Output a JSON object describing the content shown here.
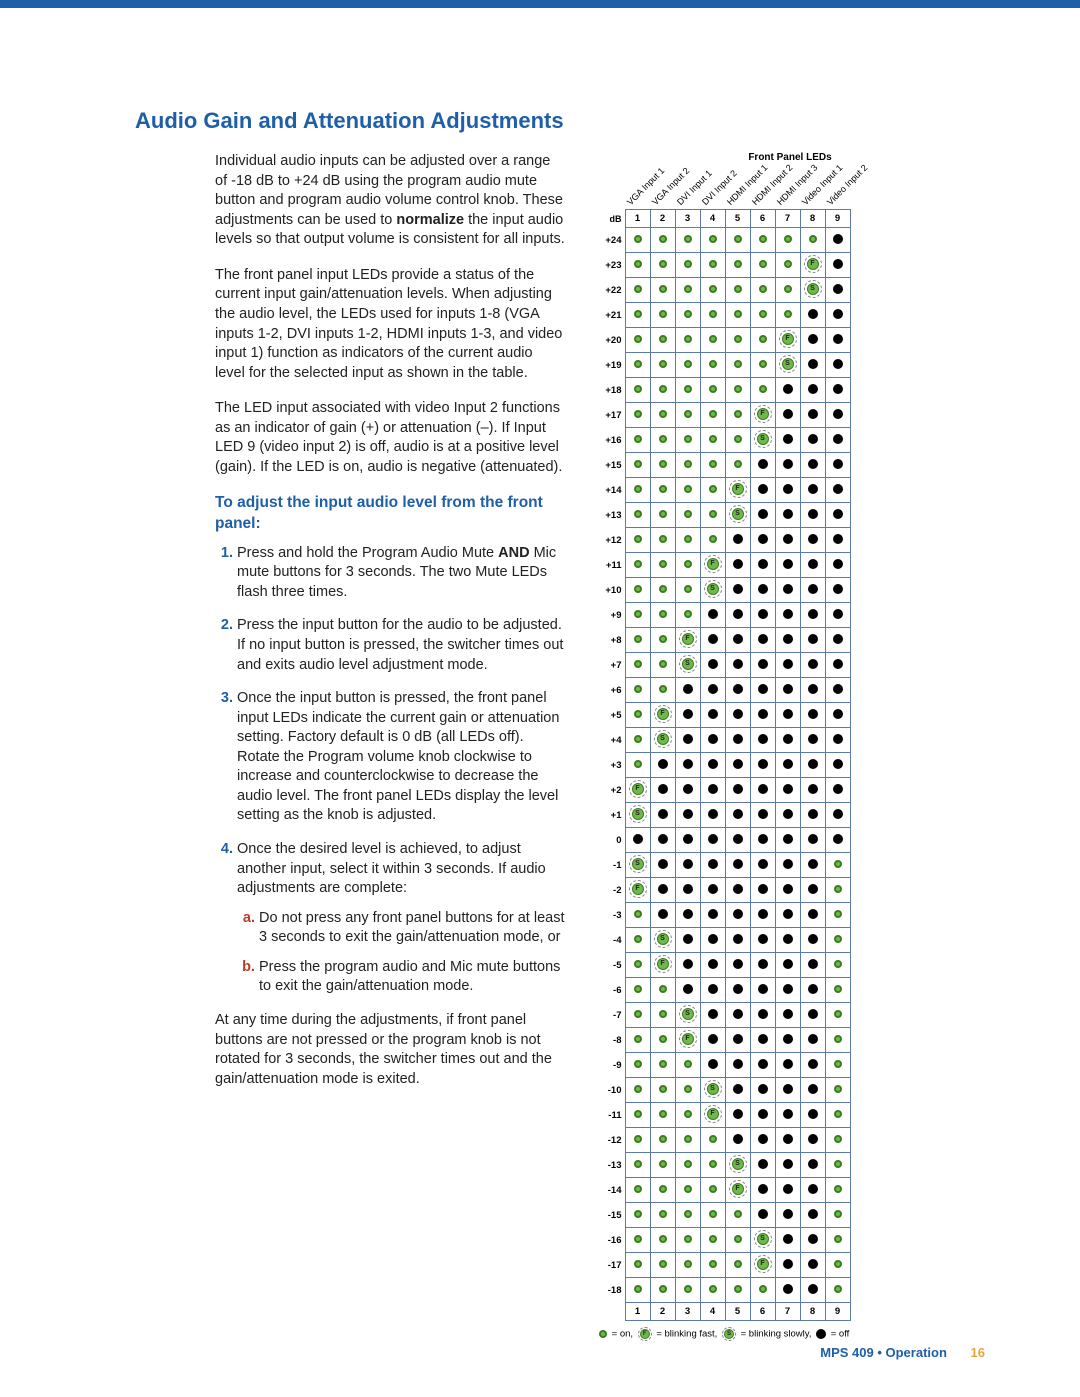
{
  "colors": {
    "accent_blue": "#1e5fa8",
    "accent_red": "#c0392b",
    "led_on_fill": "#6fb94a",
    "led_on_border": "#3c7d1f",
    "led_off": "#000000",
    "table_border": "#5b7aa8",
    "page_num": "#e8a33d"
  },
  "title": "Audio Gain and Attenuation Adjustments",
  "para1": "Individual audio inputs can be adjusted over a range of -18 dB to +24 dB using the program audio mute button and program audio volume control knob. These adjustments can be used to ",
  "para1_bold": "normalize",
  "para1_tail": " the input audio levels so that output volume is consistent for all inputs.",
  "para2": "The front panel input LEDs provide a status of the current input gain/attenuation levels. When adjusting the audio level, the LEDs used for inputs 1-8 (VGA inputs 1-2, DVI inputs 1-2, HDMI inputs 1-3, and video input 1) function as indicators of the current audio level for the selected input as shown in the table.",
  "para3": "The LED input associated with video Input 2 functions as an indicator of gain (+) or attenuation (–). If Input LED 9 (video input 2) is off, audio is at a positive level (gain). If the LED is on, audio is negative (attenuated).",
  "subhead": "To adjust the input audio level from the front panel:",
  "steps": [
    "Press and hold the Program Audio Mute <b>AND</b> Mic mute buttons for 3 seconds. The two Mute LEDs flash three times.",
    "Press the input button for the audio to be adjusted. If no input button is pressed, the switcher times out and exits audio level adjustment mode.",
    "Once the input button is pressed, the front panel input LEDs indicate the current gain or attenuation setting. Factory default is 0 dB (all LEDs off). Rotate the Program volume knob clockwise to increase and counterclockwise to decrease the audio level. The front panel LEDs display the level setting as the knob is adjusted.",
    "Once the desired level is achieved, to adjust another input, select it within 3 seconds. If audio adjustments are complete:"
  ],
  "substeps": [
    "Do not press any front panel buttons for at least 3 seconds to exit the gain/attenuation mode, or",
    "Press the program audio and Mic mute buttons to exit the gain/attenuation mode."
  ],
  "para_end": "At any time during the adjustments, if front panel buttons are not pressed or the program knob is not rotated for 3 seconds, the switcher times out and the gain/attenuation mode is exited.",
  "table": {
    "caption": "Front Panel LEDs",
    "columns": [
      "1",
      "2",
      "3",
      "4",
      "5",
      "6",
      "7",
      "8",
      "9"
    ],
    "column_labels": [
      "VGA Input 1",
      "VGA Input 2",
      "DVI Input 1",
      "DVI Input 2",
      "HDMI Input 1",
      "HDMI Input 2",
      "HDMI Input 3",
      "Video Input 1",
      "Video Input 2"
    ],
    "db_header": "dB",
    "rows": [
      {
        "db": "+24",
        "c": [
          "on",
          "on",
          "on",
          "on",
          "on",
          "on",
          "on",
          "on",
          "off"
        ]
      },
      {
        "db": "+23",
        "c": [
          "on",
          "on",
          "on",
          "on",
          "on",
          "on",
          "on",
          "bf",
          "off"
        ]
      },
      {
        "db": "+22",
        "c": [
          "on",
          "on",
          "on",
          "on",
          "on",
          "on",
          "on",
          "bs",
          "off"
        ]
      },
      {
        "db": "+21",
        "c": [
          "on",
          "on",
          "on",
          "on",
          "on",
          "on",
          "on",
          "off",
          "off"
        ]
      },
      {
        "db": "+20",
        "c": [
          "on",
          "on",
          "on",
          "on",
          "on",
          "on",
          "bf",
          "off",
          "off"
        ]
      },
      {
        "db": "+19",
        "c": [
          "on",
          "on",
          "on",
          "on",
          "on",
          "on",
          "bs",
          "off",
          "off"
        ]
      },
      {
        "db": "+18",
        "c": [
          "on",
          "on",
          "on",
          "on",
          "on",
          "on",
          "off",
          "off",
          "off"
        ]
      },
      {
        "db": "+17",
        "c": [
          "on",
          "on",
          "on",
          "on",
          "on",
          "bf",
          "off",
          "off",
          "off"
        ]
      },
      {
        "db": "+16",
        "c": [
          "on",
          "on",
          "on",
          "on",
          "on",
          "bs",
          "off",
          "off",
          "off"
        ]
      },
      {
        "db": "+15",
        "c": [
          "on",
          "on",
          "on",
          "on",
          "on",
          "off",
          "off",
          "off",
          "off"
        ]
      },
      {
        "db": "+14",
        "c": [
          "on",
          "on",
          "on",
          "on",
          "bf",
          "off",
          "off",
          "off",
          "off"
        ]
      },
      {
        "db": "+13",
        "c": [
          "on",
          "on",
          "on",
          "on",
          "bs",
          "off",
          "off",
          "off",
          "off"
        ]
      },
      {
        "db": "+12",
        "c": [
          "on",
          "on",
          "on",
          "on",
          "off",
          "off",
          "off",
          "off",
          "off"
        ]
      },
      {
        "db": "+11",
        "c": [
          "on",
          "on",
          "on",
          "bf",
          "off",
          "off",
          "off",
          "off",
          "off"
        ]
      },
      {
        "db": "+10",
        "c": [
          "on",
          "on",
          "on",
          "bs",
          "off",
          "off",
          "off",
          "off",
          "off"
        ]
      },
      {
        "db": "+9",
        "c": [
          "on",
          "on",
          "on",
          "off",
          "off",
          "off",
          "off",
          "off",
          "off"
        ]
      },
      {
        "db": "+8",
        "c": [
          "on",
          "on",
          "bf",
          "off",
          "off",
          "off",
          "off",
          "off",
          "off"
        ]
      },
      {
        "db": "+7",
        "c": [
          "on",
          "on",
          "bs",
          "off",
          "off",
          "off",
          "off",
          "off",
          "off"
        ]
      },
      {
        "db": "+6",
        "c": [
          "on",
          "on",
          "off",
          "off",
          "off",
          "off",
          "off",
          "off",
          "off"
        ]
      },
      {
        "db": "+5",
        "c": [
          "on",
          "bf",
          "off",
          "off",
          "off",
          "off",
          "off",
          "off",
          "off"
        ]
      },
      {
        "db": "+4",
        "c": [
          "on",
          "bs",
          "off",
          "off",
          "off",
          "off",
          "off",
          "off",
          "off"
        ]
      },
      {
        "db": "+3",
        "c": [
          "on",
          "off",
          "off",
          "off",
          "off",
          "off",
          "off",
          "off",
          "off"
        ]
      },
      {
        "db": "+2",
        "c": [
          "bf",
          "off",
          "off",
          "off",
          "off",
          "off",
          "off",
          "off",
          "off"
        ]
      },
      {
        "db": "+1",
        "c": [
          "bs",
          "off",
          "off",
          "off",
          "off",
          "off",
          "off",
          "off",
          "off"
        ]
      },
      {
        "db": "0",
        "c": [
          "off",
          "off",
          "off",
          "off",
          "off",
          "off",
          "off",
          "off",
          "off"
        ]
      },
      {
        "db": "-1",
        "c": [
          "bs",
          "off",
          "off",
          "off",
          "off",
          "off",
          "off",
          "off",
          "on"
        ]
      },
      {
        "db": "-2",
        "c": [
          "bf",
          "off",
          "off",
          "off",
          "off",
          "off",
          "off",
          "off",
          "on"
        ]
      },
      {
        "db": "-3",
        "c": [
          "on",
          "off",
          "off",
          "off",
          "off",
          "off",
          "off",
          "off",
          "on"
        ]
      },
      {
        "db": "-4",
        "c": [
          "on",
          "bs",
          "off",
          "off",
          "off",
          "off",
          "off",
          "off",
          "on"
        ]
      },
      {
        "db": "-5",
        "c": [
          "on",
          "bf",
          "off",
          "off",
          "off",
          "off",
          "off",
          "off",
          "on"
        ]
      },
      {
        "db": "-6",
        "c": [
          "on",
          "on",
          "off",
          "off",
          "off",
          "off",
          "off",
          "off",
          "on"
        ]
      },
      {
        "db": "-7",
        "c": [
          "on",
          "on",
          "bs",
          "off",
          "off",
          "off",
          "off",
          "off",
          "on"
        ]
      },
      {
        "db": "-8",
        "c": [
          "on",
          "on",
          "bf",
          "off",
          "off",
          "off",
          "off",
          "off",
          "on"
        ]
      },
      {
        "db": "-9",
        "c": [
          "on",
          "on",
          "on",
          "off",
          "off",
          "off",
          "off",
          "off",
          "on"
        ]
      },
      {
        "db": "-10",
        "c": [
          "on",
          "on",
          "on",
          "bs",
          "off",
          "off",
          "off",
          "off",
          "on"
        ]
      },
      {
        "db": "-11",
        "c": [
          "on",
          "on",
          "on",
          "bf",
          "off",
          "off",
          "off",
          "off",
          "on"
        ]
      },
      {
        "db": "-12",
        "c": [
          "on",
          "on",
          "on",
          "on",
          "off",
          "off",
          "off",
          "off",
          "on"
        ]
      },
      {
        "db": "-13",
        "c": [
          "on",
          "on",
          "on",
          "on",
          "bs",
          "off",
          "off",
          "off",
          "on"
        ]
      },
      {
        "db": "-14",
        "c": [
          "on",
          "on",
          "on",
          "on",
          "bf",
          "off",
          "off",
          "off",
          "on"
        ]
      },
      {
        "db": "-15",
        "c": [
          "on",
          "on",
          "on",
          "on",
          "on",
          "off",
          "off",
          "off",
          "on"
        ]
      },
      {
        "db": "-16",
        "c": [
          "on",
          "on",
          "on",
          "on",
          "on",
          "bs",
          "off",
          "off",
          "on"
        ]
      },
      {
        "db": "-17",
        "c": [
          "on",
          "on",
          "on",
          "on",
          "on",
          "bf",
          "off",
          "off",
          "on"
        ]
      },
      {
        "db": "-18",
        "c": [
          "on",
          "on",
          "on",
          "on",
          "on",
          "on",
          "off",
          "off",
          "on"
        ]
      }
    ],
    "legend": {
      "on": "= on,",
      "bf": "= blinking fast,",
      "bs": "= blinking slowly,",
      "off": "= off"
    }
  },
  "footer": {
    "doc": "MPS 409 • Operation",
    "page": "16"
  }
}
